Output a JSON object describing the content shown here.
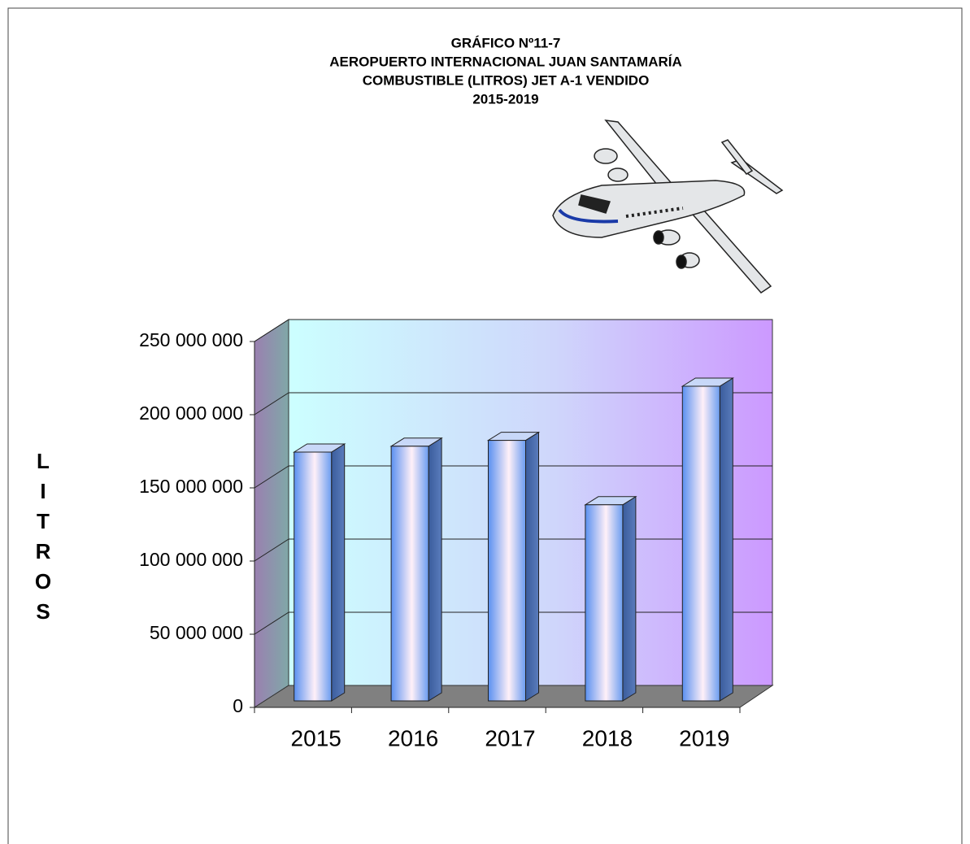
{
  "chart_data": {
    "type": "bar3d",
    "title": [
      "GRÁFICO Nº11-7",
      "AEROPUERTO  INTERNACIONAL  JUAN SANTAMARÍA",
      "COMBUSTIBLE (LITROS) JET  A-1 VENDIDO",
      "2015-2019"
    ],
    "y_label": "LITROS",
    "categories": [
      "2015",
      "2016",
      "2017",
      "2018",
      "2019"
    ],
    "values": [
      170000000,
      174000000,
      178000000,
      134000000,
      215000000
    ],
    "ylim": [
      0,
      250000000
    ],
    "yticks": [
      {
        "value": 0,
        "label": "0"
      },
      {
        "value": 50000000,
        "label": "50 000 000"
      },
      {
        "value": 100000000,
        "label": "100 000 000"
      },
      {
        "value": 150000000,
        "label": "150 000 000"
      },
      {
        "value": 200000000,
        "label": "200 000 000"
      },
      {
        "value": 250000000,
        "label": "250 000 000"
      }
    ],
    "grid": true
  }
}
